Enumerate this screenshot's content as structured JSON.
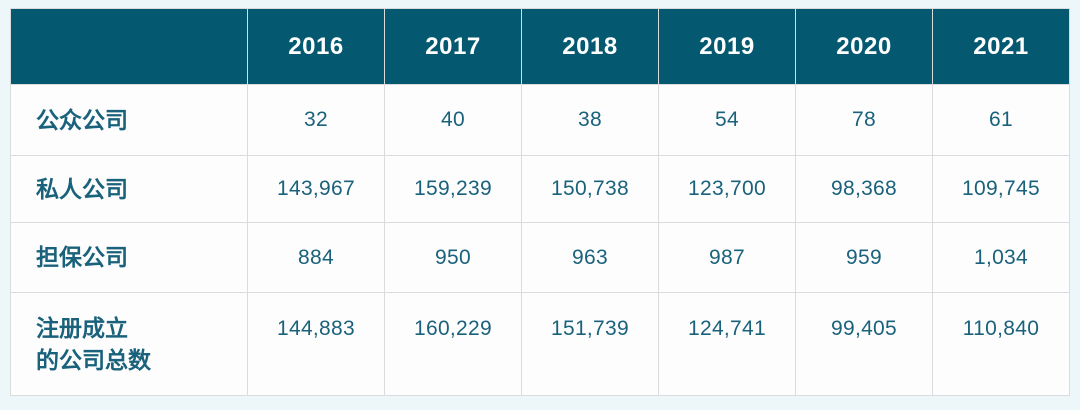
{
  "colors": {
    "page_background": "#edf6f8",
    "header_background": "#045971",
    "header_text": "#ffffff",
    "body_text": "#1a627b",
    "cell_background": "#fdfdfe",
    "border": "#d9dbdc"
  },
  "table": {
    "columns": [
      "",
      "2016",
      "2017",
      "2018",
      "2019",
      "2020",
      "2021"
    ],
    "rows": [
      {
        "label": "公众公司",
        "values": [
          "32",
          "40",
          "38",
          "54",
          "78",
          "61"
        ]
      },
      {
        "label": "私人公司",
        "values": [
          "143,967",
          "159,239",
          "150,738",
          "123,700",
          "98,368",
          "109,745"
        ]
      },
      {
        "label": "担保公司",
        "values": [
          "884",
          "950",
          "963",
          "987",
          "959",
          "1,034"
        ]
      },
      {
        "label": "注册成立\n的公司总数",
        "values": [
          "144,883",
          "160,229",
          "151,739",
          "124,741",
          "99,405",
          "110,840"
        ]
      }
    ]
  },
  "chart_data": {
    "type": "table",
    "categories": [
      "2016",
      "2017",
      "2018",
      "2019",
      "2020",
      "2021"
    ],
    "series": [
      {
        "name": "公众公司",
        "values": [
          32,
          40,
          38,
          54,
          78,
          61
        ]
      },
      {
        "name": "私人公司",
        "values": [
          143967,
          159239,
          150738,
          123700,
          98368,
          109745
        ]
      },
      {
        "name": "担保公司",
        "values": [
          884,
          950,
          963,
          987,
          959,
          1034
        ]
      },
      {
        "name": "注册成立的公司总数",
        "values": [
          144883,
          160229,
          151739,
          124741,
          99405,
          110840
        ]
      }
    ],
    "title": "",
    "xlabel": "",
    "ylabel": "",
    "legend_position": "none",
    "grid": true
  }
}
